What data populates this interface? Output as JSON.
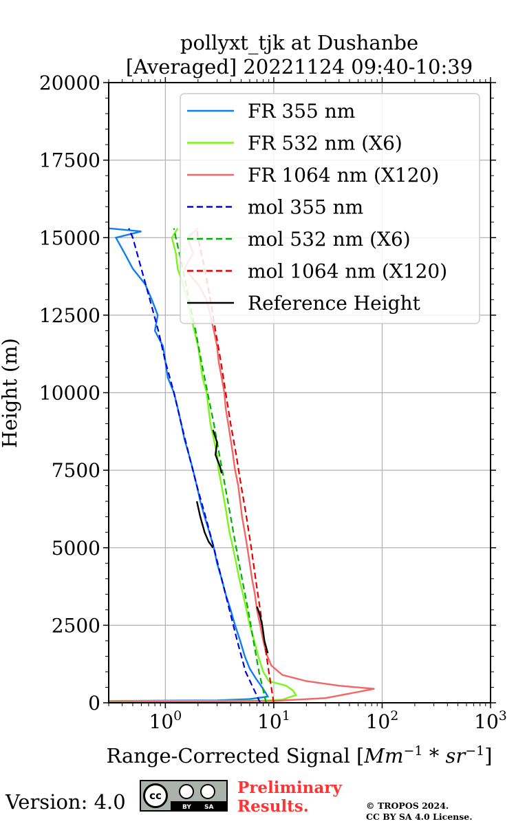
{
  "chart_data": {
    "type": "line",
    "title_line1": "pollyxt_tjk at Dushanbe",
    "title_line2": "[Averaged] 20221124 09:40-10:39",
    "xlabel": "Range-Corrected Signal [$Mm^{-1}*sr^{-1}$]",
    "xlabel_parts": {
      "main": "Range-Corrected Signal [",
      "mm": "Mm",
      "exp1": "−1",
      "mid": " * ",
      "sr": "sr",
      "exp2": "−1",
      "close": "]"
    },
    "ylabel": "Height (m)",
    "xscale": "log",
    "xlim": [
      0.3,
      1000
    ],
    "ylim": [
      0,
      20000
    ],
    "x_ticks": [
      {
        "value": 1,
        "base": "10",
        "exp": "0"
      },
      {
        "value": 10,
        "base": "10",
        "exp": "1"
      },
      {
        "value": 100,
        "base": "10",
        "exp": "2"
      },
      {
        "value": 1000,
        "base": "10",
        "exp": "3"
      }
    ],
    "y_ticks": [
      0,
      2500,
      5000,
      7500,
      10000,
      12500,
      15000,
      17500,
      20000
    ],
    "y_tick_labels": [
      "0",
      "2500",
      "5000",
      "7500",
      "10000",
      "12500",
      "15000",
      "17500",
      "20000"
    ],
    "grid": true,
    "legend_position": "upper-right",
    "series": [
      {
        "name": "FR 355 nm",
        "style": "solid",
        "color": "#0a7ff5",
        "points": [
          [
            0.3,
            60
          ],
          [
            3,
            80
          ],
          [
            6,
            120
          ],
          [
            8.8,
            200
          ],
          [
            8.5,
            300
          ],
          [
            7.8,
            500
          ],
          [
            6.8,
            800
          ],
          [
            6.0,
            1100
          ],
          [
            5.4,
            1500
          ],
          [
            4.9,
            2000
          ],
          [
            4.4,
            2500
          ],
          [
            4.0,
            3000
          ],
          [
            3.6,
            3500
          ],
          [
            3.3,
            4000
          ],
          [
            3.0,
            4500
          ],
          [
            2.8,
            5000
          ],
          [
            2.55,
            5500
          ],
          [
            2.3,
            6000
          ],
          [
            2.1,
            6500
          ],
          [
            1.95,
            7000
          ],
          [
            1.8,
            7500
          ],
          [
            1.65,
            8000
          ],
          [
            1.5,
            8500
          ],
          [
            1.4,
            9000
          ],
          [
            1.3,
            9500
          ],
          [
            1.2,
            10000
          ],
          [
            1.05,
            10500
          ],
          [
            1.0,
            11000
          ],
          [
            0.95,
            11500
          ],
          [
            0.8,
            12000
          ],
          [
            0.85,
            12500
          ],
          [
            0.75,
            13000
          ],
          [
            0.65,
            13500
          ],
          [
            0.5,
            14000
          ],
          [
            0.42,
            14500
          ],
          [
            0.35,
            15000
          ],
          [
            0.6,
            15200
          ],
          [
            0.3,
            15300
          ]
        ]
      },
      {
        "name": "FR 532 nm (X6)",
        "style": "solid",
        "color": "#7af51a",
        "points": [
          [
            0.3,
            50
          ],
          [
            8,
            70
          ],
          [
            12,
            100
          ],
          [
            16,
            250
          ],
          [
            15,
            400
          ],
          [
            13,
            550
          ],
          [
            9,
            700
          ],
          [
            8,
            1000
          ],
          [
            7.2,
            1500
          ],
          [
            6.6,
            2000
          ],
          [
            6.0,
            2500
          ],
          [
            5.6,
            3000
          ],
          [
            5.2,
            3500
          ],
          [
            4.8,
            4000
          ],
          [
            4.5,
            4500
          ],
          [
            4.2,
            5000
          ],
          [
            3.9,
            5500
          ],
          [
            3.7,
            6000
          ],
          [
            3.5,
            6500
          ],
          [
            3.3,
            7000
          ],
          [
            3.1,
            7500
          ],
          [
            3.0,
            8000
          ],
          [
            2.8,
            8500
          ],
          [
            2.6,
            9000
          ],
          [
            2.5,
            9500
          ],
          [
            2.4,
            10000
          ],
          [
            2.2,
            10500
          ],
          [
            2.1,
            11000
          ],
          [
            2.0,
            11500
          ],
          [
            1.85,
            12000
          ],
          [
            1.7,
            12500
          ],
          [
            1.6,
            13000
          ],
          [
            1.45,
            13500
          ],
          [
            1.3,
            14000
          ],
          [
            1.25,
            14500
          ],
          [
            1.15,
            15000
          ],
          [
            1.3,
            15300
          ]
        ]
      },
      {
        "name": "FR 1064 nm (X120)",
        "style": "solid",
        "color": "#f56464",
        "points": [
          [
            0.3,
            30
          ],
          [
            10,
            60
          ],
          [
            30,
            150
          ],
          [
            85,
            450
          ],
          [
            40,
            550
          ],
          [
            20,
            700
          ],
          [
            12,
            900
          ],
          [
            9.5,
            1200
          ],
          [
            8.5,
            1600
          ],
          [
            8.0,
            2000
          ],
          [
            7.5,
            2500
          ],
          [
            7.0,
            3000
          ],
          [
            6.7,
            3500
          ],
          [
            6.3,
            4000
          ],
          [
            6.0,
            4500
          ],
          [
            5.7,
            5000
          ],
          [
            5.4,
            5500
          ],
          [
            5.1,
            6000
          ],
          [
            4.9,
            6500
          ],
          [
            4.7,
            7000
          ],
          [
            4.4,
            7500
          ],
          [
            4.2,
            8000
          ],
          [
            4.0,
            8500
          ],
          [
            3.8,
            9000
          ],
          [
            3.6,
            9500
          ],
          [
            3.5,
            10000
          ],
          [
            3.3,
            10500
          ],
          [
            3.1,
            11000
          ],
          [
            3.0,
            11500
          ],
          [
            2.8,
            12000
          ],
          [
            2.6,
            12500
          ],
          [
            2.4,
            13000
          ],
          [
            2.0,
            13500
          ],
          [
            1.5,
            14000
          ],
          [
            1.8,
            14500
          ],
          [
            1.6,
            15000
          ],
          [
            2.0,
            15300
          ]
        ]
      },
      {
        "name": "mol 355 nm",
        "style": "dashed",
        "color": "#0000e0",
        "points": [
          [
            7.5,
            0
          ],
          [
            5.5,
            1000
          ],
          [
            4.6,
            2000
          ],
          [
            3.9,
            3000
          ],
          [
            3.3,
            4000
          ],
          [
            2.8,
            5000
          ],
          [
            2.35,
            6000
          ],
          [
            1.95,
            7000
          ],
          [
            1.65,
            8000
          ],
          [
            1.4,
            9000
          ],
          [
            1.2,
            10000
          ],
          [
            1.0,
            11000
          ],
          [
            0.86,
            12000
          ],
          [
            0.72,
            13000
          ],
          [
            0.6,
            14000
          ],
          [
            0.5,
            15000
          ],
          [
            0.46,
            15300
          ]
        ]
      },
      {
        "name": "mol 532 nm (X6)",
        "style": "dashed",
        "color": "#00b000",
        "points": [
          [
            8.5,
            0
          ],
          [
            7.3,
            1000
          ],
          [
            6.5,
            2000
          ],
          [
            5.8,
            3000
          ],
          [
            5.1,
            4000
          ],
          [
            4.5,
            5000
          ],
          [
            4.0,
            6000
          ],
          [
            3.55,
            7000
          ],
          [
            3.15,
            8000
          ],
          [
            2.8,
            9000
          ],
          [
            2.45,
            10000
          ],
          [
            2.15,
            11000
          ],
          [
            1.9,
            12000
          ],
          [
            1.65,
            13000
          ],
          [
            1.45,
            14000
          ],
          [
            1.25,
            15000
          ],
          [
            1.2,
            15300
          ]
        ]
      },
      {
        "name": "mol 1064 nm (X120)",
        "style": "dashed",
        "color": "#e00000",
        "points": [
          [
            10,
            0
          ],
          [
            9.0,
            1000
          ],
          [
            8.2,
            2000
          ],
          [
            7.5,
            3000
          ],
          [
            6.8,
            4000
          ],
          [
            6.2,
            5000
          ],
          [
            5.6,
            6000
          ],
          [
            5.0,
            7000
          ],
          [
            4.5,
            8000
          ],
          [
            4.0,
            9000
          ],
          [
            3.6,
            10000
          ],
          [
            3.25,
            11000
          ],
          [
            2.9,
            12000
          ],
          [
            2.6,
            13000
          ],
          [
            2.3,
            14000
          ],
          [
            2.0,
            15000
          ],
          [
            1.95,
            15300
          ]
        ]
      },
      {
        "name": "Reference Height",
        "style": "solid",
        "color": "#000000",
        "points": [
          [
            1.95,
            6500
          ],
          [
            2.1,
            6000
          ],
          [
            2.3,
            5500
          ],
          [
            2.5,
            5200
          ],
          [
            2.75,
            5000
          ]
        ],
        "extra_segments": [
          [
            [
              2.75,
              8800
            ],
            [
              3.0,
              8400
            ],
            [
              2.9,
              8000
            ],
            [
              3.2,
              7600
            ],
            [
              3.3,
              7400
            ]
          ],
          [
            [
              7.0,
              3100
            ],
            [
              7.5,
              2800
            ],
            [
              7.9,
              2400
            ],
            [
              8.2,
              2000
            ],
            [
              8.8,
              1600
            ]
          ]
        ]
      }
    ]
  },
  "footer": {
    "version": "Version: 4.0",
    "cc_label": "cc",
    "cc_by": "BY",
    "cc_sa": "SA",
    "preliminary_line1": "Preliminary",
    "preliminary_line2": "Results.",
    "copyright_line1": "© TROPOS 2024.",
    "copyright_line2": "CC BY SA 4.0 License."
  }
}
